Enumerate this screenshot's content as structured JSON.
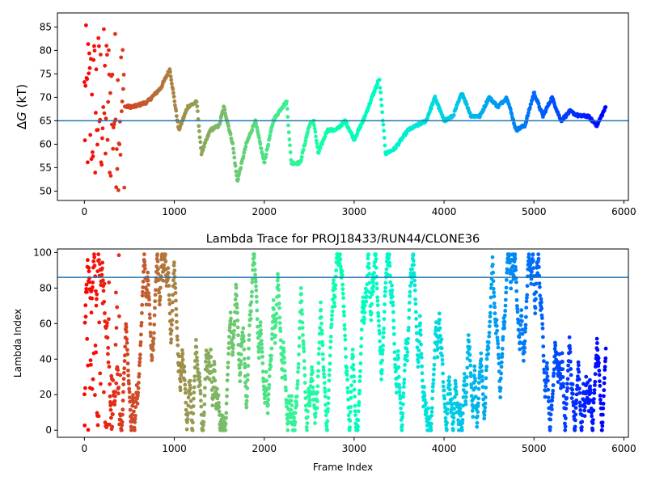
{
  "chart_data": [
    {
      "type": "scatter",
      "title": "",
      "xlabel": "",
      "ylabel": "ΔG (kT)",
      "ylabel_italic_part": "G",
      "xlim": [
        -300,
        6050
      ],
      "ylim": [
        48,
        88
      ],
      "x_ticks": [
        0,
        1000,
        2000,
        3000,
        4000,
        5000,
        6000
      ],
      "y_ticks": [
        50,
        55,
        60,
        65,
        70,
        75,
        80,
        85
      ],
      "hline": {
        "y": 65,
        "color": "#1f77b4"
      },
      "colormap": "rainbow",
      "color_direction": "reversed-by-frame",
      "x_max_frame": 5800,
      "trace_keypoints": {
        "x": [
          0,
          120,
          250,
          400,
          550,
          700,
          850,
          950,
          1050,
          1150,
          1250,
          1300,
          1400,
          1500,
          1550,
          1650,
          1700,
          1800,
          1900,
          2000,
          2100,
          2200,
          2250,
          2300,
          2400,
          2500,
          2550,
          2600,
          2700,
          2800,
          2900,
          3000,
          3100,
          3200,
          3280,
          3350,
          3450,
          3600,
          3800,
          3900,
          4000,
          4100,
          4200,
          4300,
          4400,
          4500,
          4600,
          4700,
          4800,
          4900,
          5000,
          5100,
          5200,
          5300,
          5400,
          5500,
          5600,
          5700,
          5800
        ],
        "y": [
          65,
          72,
          60,
          68,
          68,
          69,
          72,
          76,
          63,
          68,
          69,
          58,
          63,
          64,
          68,
          60,
          52,
          60,
          65,
          56,
          65,
          68,
          69,
          56,
          56,
          64,
          65,
          58,
          63,
          63,
          65,
          61,
          65,
          70,
          74,
          58,
          59,
          63,
          65,
          70,
          65,
          66,
          71,
          66,
          66,
          70,
          68,
          70,
          63,
          64,
          71,
          66,
          70,
          65,
          67,
          66,
          66,
          64,
          68
        ]
      },
      "early_spread": {
        "x_max": 450,
        "y_min": 50,
        "y_max": 85.5
      }
    },
    {
      "type": "scatter",
      "title": "Lambda Trace for PROJ18433/RUN44/CLONE36",
      "xlabel": "Frame Index",
      "ylabel": "Lambda Index",
      "xlim": [
        -300,
        6050
      ],
      "ylim": [
        -4,
        102
      ],
      "x_ticks": [
        0,
        1000,
        2000,
        3000,
        4000,
        5000,
        6000
      ],
      "y_ticks": [
        0,
        20,
        40,
        60,
        80,
        100
      ],
      "hline": {
        "y": 86,
        "color": "#1f77b4"
      },
      "colormap": "rainbow",
      "x_max_frame": 5800,
      "lambda_range": [
        0,
        99
      ]
    }
  ]
}
